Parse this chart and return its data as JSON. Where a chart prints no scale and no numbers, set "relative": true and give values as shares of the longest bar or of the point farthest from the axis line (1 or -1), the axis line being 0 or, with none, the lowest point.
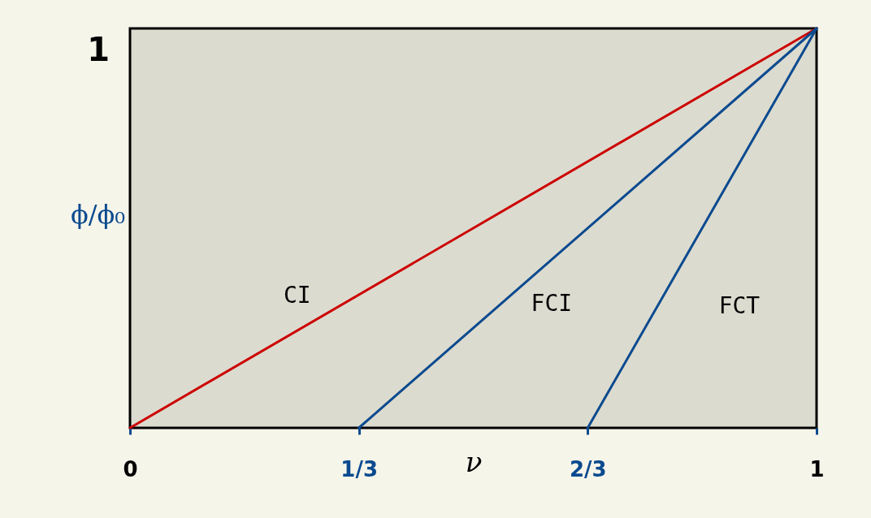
{
  "chart_data": {
    "type": "line",
    "xlabel": "ν",
    "ylabel": "ϕ/ϕ₀",
    "xlim": [
      0,
      1
    ],
    "relative": true,
    "annotations": [
      "1"
    ],
    "xticks": [
      0,
      {
        "value": 0.3333,
        "label": "1/3"
      },
      {
        "value": 0.6667,
        "label": "2/3"
      },
      1
    ],
    "grid": false,
    "marker": "none",
    "line_style": "solid",
    "series": [
      {
        "name": "CI",
        "color": "#cc0000",
        "x": [
          0,
          1
        ],
        "values": [
          0,
          1
        ]
      },
      {
        "name": "FCI",
        "color": "#0b4a8f",
        "x": [
          0.3333,
          1
        ],
        "values": [
          0,
          1
        ]
      },
      {
        "name": "FCT",
        "color": "#0b4a8f",
        "x": [
          0.6667,
          1
        ],
        "values": [
          0,
          1
        ]
      }
    ]
  }
}
